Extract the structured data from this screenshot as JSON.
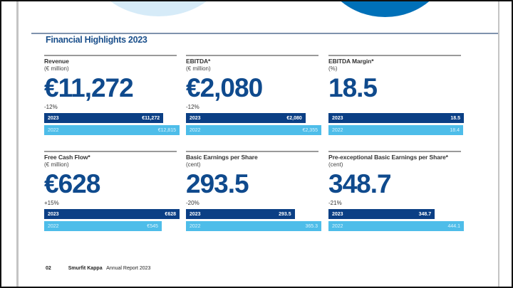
{
  "document": {
    "section_title": "Financial Highlights 2023",
    "footer": {
      "page_number": "02",
      "brand": "Smurfit Kappa",
      "report": "Annual Report 2023"
    },
    "colors": {
      "title": "#1a4f8b",
      "value": "#0f4a8d",
      "bar_2023": "#0b3f85",
      "bar_2022": "#4ebde9",
      "circle_light": "#d6ebf8",
      "circle_dark": "#0070b8"
    }
  },
  "metrics": [
    {
      "title": "Revenue",
      "unit": "(€ million)",
      "value": "€11,272",
      "change": "-12%",
      "bars": [
        {
          "year": "2023",
          "label": "€11,272",
          "amount": 11272
        },
        {
          "year": "2022",
          "label": "€12,815",
          "amount": 12815
        }
      ]
    },
    {
      "title": "EBITDA*",
      "unit": "(€ million)",
      "value": "€2,080",
      "change": "-12%",
      "bars": [
        {
          "year": "2023",
          "label": "€2,080",
          "amount": 2080
        },
        {
          "year": "2022",
          "label": "€2,355",
          "amount": 2355
        }
      ]
    },
    {
      "title": "EBITDA Margin*",
      "unit": "(%)",
      "value": "18.5",
      "change": "",
      "bars": [
        {
          "year": "2023",
          "label": "18.5",
          "amount": 18.5
        },
        {
          "year": "2022",
          "label": "18.4",
          "amount": 18.4
        }
      ]
    },
    {
      "title": "Free Cash Flow*",
      "unit": "(€ million)",
      "value": "€628",
      "change": "+15%",
      "bars": [
        {
          "year": "2023",
          "label": "€628",
          "amount": 628
        },
        {
          "year": "2022",
          "label": "€545",
          "amount": 545
        }
      ]
    },
    {
      "title": "Basic Earnings per Share",
      "unit": "(cent)",
      "value": "293.5",
      "change": "-20%",
      "bars": [
        {
          "year": "2023",
          "label": "293.5",
          "amount": 293.5
        },
        {
          "year": "2022",
          "label": "365.3",
          "amount": 365.3
        }
      ]
    },
    {
      "title": "Pre-exceptional Basic Earnings per Share*",
      "unit": "(cent)",
      "value": "348.7",
      "change": "-21%",
      "bars": [
        {
          "year": "2023",
          "label": "348.7",
          "amount": 348.7
        },
        {
          "year": "2022",
          "label": "444.1",
          "amount": 444.1
        }
      ]
    }
  ]
}
